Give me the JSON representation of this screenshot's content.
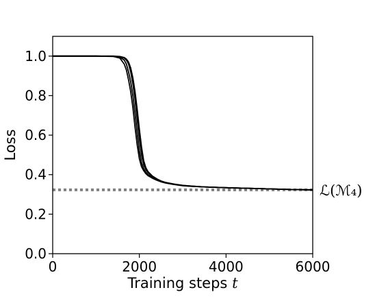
{
  "chart_data": {
    "type": "line",
    "title": "",
    "xlabel": "Training steps",
    "xlabel_var": "t",
    "ylabel": "Loss",
    "xlim": [
      0,
      6000
    ],
    "ylim": [
      0,
      1.1
    ],
    "xticks": [
      0,
      2000,
      4000,
      6000
    ],
    "xtick_labels": [
      "0",
      "2000",
      "4000",
      "6000"
    ],
    "yticks": [
      0.0,
      0.2,
      0.4,
      0.6,
      0.8,
      1.0
    ],
    "ytick_labels": [
      "0.0",
      "0.2",
      "0.4",
      "0.6",
      "0.8",
      "1.0"
    ],
    "grid": false,
    "line_color": "#000000",
    "reference_line": {
      "value": 0.323,
      "label": "ℒ(ℳ₄)",
      "color": "#808080",
      "style": "dotted"
    },
    "series": [
      {
        "x": [
          0,
          500,
          1000,
          1400,
          1550,
          1650,
          1700,
          1750,
          1800,
          1850,
          1900,
          1950,
          2000,
          2050,
          2100,
          2150,
          2200,
          2300,
          2400,
          2500,
          2600,
          2800,
          3000,
          3200,
          3500,
          4000,
          4500,
          5000,
          5500,
          6000
        ],
        "values": [
          1.0,
          1.0,
          1.0,
          0.998,
          0.99,
          0.96,
          0.93,
          0.88,
          0.82,
          0.74,
          0.64,
          0.55,
          0.48,
          0.44,
          0.42,
          0.405,
          0.395,
          0.382,
          0.372,
          0.364,
          0.358,
          0.35,
          0.344,
          0.341,
          0.338,
          0.334,
          0.331,
          0.328,
          0.325,
          0.323
        ]
      },
      {
        "x": [
          0,
          500,
          1000,
          1400,
          1550,
          1650,
          1700,
          1750,
          1800,
          1850,
          1900,
          1950,
          2000,
          2050,
          2100,
          2150,
          2200,
          2300,
          2400,
          2500,
          2600,
          2800,
          3000,
          3200,
          3500,
          4000,
          4500,
          5000,
          5500,
          6000
        ],
        "values": [
          1.0,
          1.0,
          1.0,
          0.999,
          0.995,
          0.98,
          0.96,
          0.92,
          0.87,
          0.8,
          0.71,
          0.61,
          0.52,
          0.46,
          0.43,
          0.412,
          0.4,
          0.385,
          0.374,
          0.365,
          0.359,
          0.351,
          0.345,
          0.341,
          0.338,
          0.334,
          0.331,
          0.328,
          0.325,
          0.323
        ]
      },
      {
        "x": [
          0,
          500,
          1000,
          1400,
          1550,
          1650,
          1700,
          1750,
          1800,
          1850,
          1900,
          1950,
          2000,
          2050,
          2100,
          2150,
          2200,
          2300,
          2400,
          2500,
          2600,
          2800,
          3000,
          3200,
          3500,
          4000,
          4500,
          5000,
          5500,
          6000
        ],
        "values": [
          1.0,
          1.0,
          1.0,
          0.999,
          0.997,
          0.99,
          0.98,
          0.96,
          0.92,
          0.86,
          0.78,
          0.68,
          0.58,
          0.5,
          0.45,
          0.425,
          0.41,
          0.39,
          0.377,
          0.367,
          0.36,
          0.352,
          0.345,
          0.342,
          0.338,
          0.334,
          0.331,
          0.328,
          0.325,
          0.323
        ]
      },
      {
        "x": [
          0,
          500,
          1000,
          1400,
          1550,
          1650,
          1700,
          1750,
          1800,
          1850,
          1900,
          1950,
          2000,
          2050,
          2100,
          2150,
          2200,
          2300,
          2400,
          2500,
          2600,
          2800,
          3000,
          3200,
          3500,
          4000,
          4500,
          5000,
          5500,
          6000
        ],
        "values": [
          1.0,
          1.0,
          1.0,
          1.0,
          0.998,
          0.993,
          0.985,
          0.97,
          0.94,
          0.89,
          0.82,
          0.73,
          0.63,
          0.54,
          0.47,
          0.435,
          0.415,
          0.393,
          0.379,
          0.368,
          0.361,
          0.352,
          0.346,
          0.342,
          0.338,
          0.334,
          0.331,
          0.328,
          0.325,
          0.323
        ]
      }
    ]
  }
}
